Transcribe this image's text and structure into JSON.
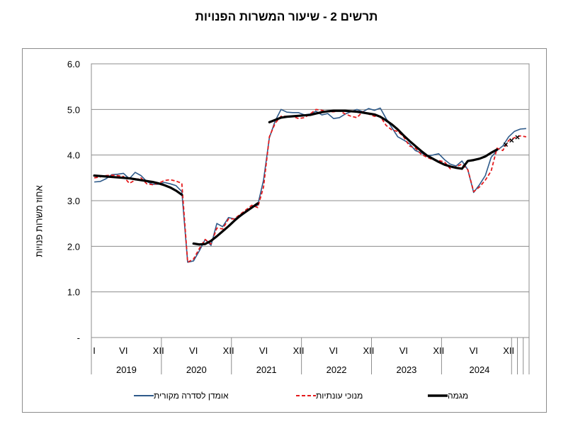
{
  "title": "תרשים 2 - שיעור המשרות הפנויות",
  "chart_data": {
    "type": "line",
    "title": "תרשים 2 - שיעור המשרות הפנויות",
    "ylabel": "אחוז משרות פנויות",
    "xlabel": "",
    "ylim": [
      0,
      6
    ],
    "yticks": [
      {
        "value": 0,
        "label": "-"
      },
      {
        "value": 1,
        "label": "1.0"
      },
      {
        "value": 2,
        "label": "2.0"
      },
      {
        "value": 3,
        "label": "3.0"
      },
      {
        "value": 4,
        "label": "4.0"
      },
      {
        "value": 5,
        "label": "5.0"
      },
      {
        "value": 6,
        "label": "6.0"
      }
    ],
    "month_ticks": [
      {
        "month": 1,
        "label": "I"
      },
      {
        "month": 6,
        "label": "VI"
      },
      {
        "month": 12,
        "label": "XII"
      },
      {
        "month": 18,
        "label": "VI"
      },
      {
        "month": 24,
        "label": "XII"
      },
      {
        "month": 30,
        "label": "VI"
      },
      {
        "month": 36,
        "label": "XII"
      },
      {
        "month": 42,
        "label": "VI"
      },
      {
        "month": 48,
        "label": "XII"
      },
      {
        "month": 54,
        "label": "VI"
      },
      {
        "month": 60,
        "label": "XII"
      },
      {
        "month": 66,
        "label": "VI"
      },
      {
        "month": 72,
        "label": "XII"
      }
    ],
    "years": [
      "2019",
      "2020",
      "2021",
      "2022",
      "2023",
      "2024"
    ],
    "grid": true,
    "legend_position": "bottom",
    "series": [
      {
        "name": "אומדן לסדרה מקורית",
        "color": "#2e5a8a",
        "style": "solid",
        "values": [
          3.41,
          3.42,
          3.48,
          3.57,
          3.58,
          3.6,
          3.48,
          3.62,
          3.55,
          3.42,
          3.36,
          3.36,
          3.4,
          3.37,
          3.33,
          3.2,
          1.65,
          1.68,
          1.9,
          2.15,
          2.02,
          2.5,
          2.43,
          2.63,
          2.6,
          2.65,
          2.75,
          2.85,
          2.9,
          3.45,
          4.38,
          4.75,
          5.0,
          4.94,
          4.93,
          4.93,
          4.88,
          4.9,
          4.96,
          4.88,
          4.91,
          4.8,
          4.82,
          4.9,
          4.95,
          5.0,
          4.95,
          5.02,
          4.98,
          5.03,
          4.8,
          4.6,
          4.4,
          4.33,
          4.25,
          4.1,
          4.05,
          3.98,
          4.0,
          4.03,
          3.9,
          3.8,
          3.76,
          3.87,
          3.68,
          3.18,
          3.35,
          3.55,
          3.95,
          4.1,
          4.2,
          4.4,
          4.52,
          4.57,
          4.58
        ]
      },
      {
        "name": "מנוכי עונתיות",
        "color": "#e41a1c",
        "style": "dashed",
        "values": [
          3.5,
          3.52,
          3.55,
          3.56,
          3.55,
          3.53,
          3.38,
          3.45,
          3.5,
          3.37,
          3.35,
          3.38,
          3.44,
          3.46,
          3.43,
          3.38,
          1.65,
          1.72,
          1.95,
          2.15,
          2.05,
          2.4,
          2.38,
          2.6,
          2.6,
          2.7,
          2.8,
          2.9,
          2.85,
          3.3,
          4.4,
          4.7,
          4.85,
          4.85,
          4.85,
          4.8,
          4.82,
          4.9,
          5.0,
          4.98,
          4.95,
          4.95,
          4.97,
          4.9,
          4.85,
          4.82,
          4.95,
          4.9,
          4.85,
          4.85,
          4.65,
          4.55,
          4.52,
          4.4,
          4.2,
          4.15,
          4.02,
          3.95,
          3.9,
          3.88,
          3.85,
          3.7,
          3.75,
          3.8,
          3.68,
          3.2,
          3.3,
          3.45,
          3.65,
          4.15,
          4.1,
          4.32,
          4.38,
          4.42,
          4.4
        ]
      },
      {
        "name": "מגמה",
        "color": "#000000",
        "style": "solid-thick",
        "segments": [
          {
            "start": 1,
            "values": [
              3.55,
              3.54,
              3.53,
              3.52,
              3.51,
              3.5,
              3.49,
              3.47,
              3.45,
              3.43,
              3.41,
              3.38,
              3.34,
              3.29,
              3.22,
              3.13
            ]
          },
          {
            "start": 18,
            "values": [
              2.06,
              2.04,
              2.05,
              2.12,
              2.22,
              2.33,
              2.44,
              2.56,
              2.67,
              2.76,
              2.85,
              2.94
            ]
          },
          {
            "start": 31,
            "values": [
              4.72,
              4.77,
              4.82,
              4.84,
              4.85,
              4.86,
              4.87,
              4.88,
              4.91,
              4.94,
              4.96,
              4.97,
              4.97,
              4.97,
              4.96,
              4.95,
              4.93,
              4.91,
              4.89,
              4.84,
              4.76,
              4.67,
              4.56,
              4.43,
              4.31,
              4.2,
              4.09,
              3.99,
              3.92,
              3.85,
              3.79,
              3.75,
              3.72,
              3.7,
              3.87,
              3.89,
              3.92,
              3.97,
              4.05,
              4.12
            ]
          }
        ]
      },
      {
        "name": "",
        "color": "#000000",
        "style": "x-markers",
        "points": [
          [
            71.5,
            4.23
          ],
          [
            72.5,
            4.32
          ],
          [
            73.5,
            4.39
          ]
        ]
      }
    ]
  },
  "legend": [
    {
      "label": "אומדן לסדרה מקורית",
      "color": "#2e5a8a",
      "style": "solid"
    },
    {
      "label": "מנוכי עונתיות",
      "color": "#e41a1c",
      "style": "dashed"
    },
    {
      "label": "מגמה",
      "color": "#000000",
      "style": "thick"
    }
  ]
}
